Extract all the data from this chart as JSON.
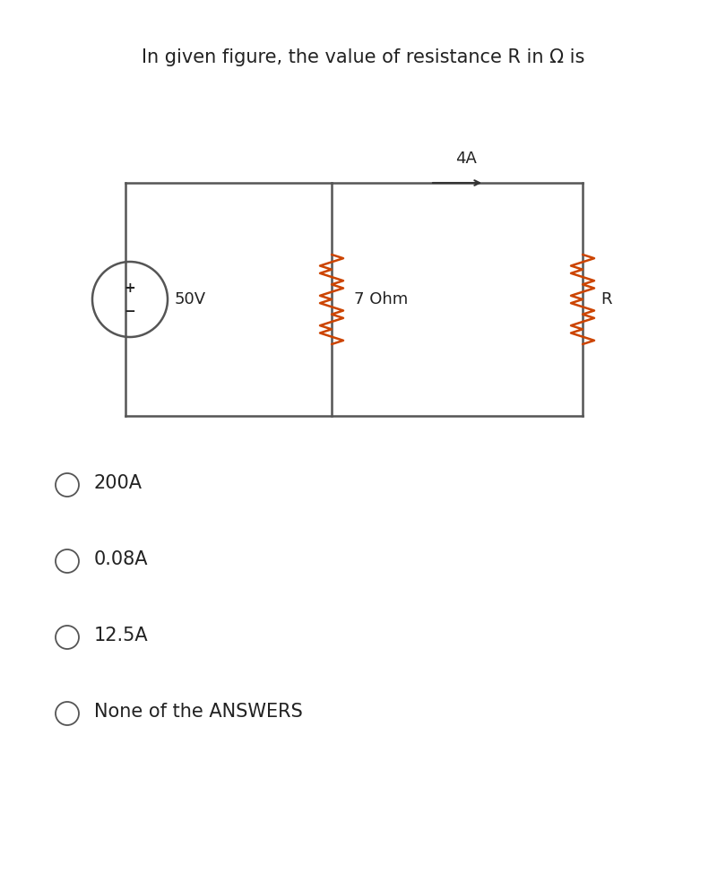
{
  "title": "In given figure, the value of resistance R in Ω is",
  "title_fontsize": 15,
  "bg_color": "#ffffff",
  "text_color": "#222222",
  "resistor_color": "#cc4400",
  "circuit_color": "#555555",
  "options": [
    "200A",
    "0.08A",
    "12.5A",
    "None of the ANSWERS"
  ],
  "option_fontsize": 15,
  "circuit_label_4A": "4A",
  "circuit_label_50V": "50V",
  "circuit_label_7ohm": "7 Ohm",
  "circuit_label_R": "R"
}
